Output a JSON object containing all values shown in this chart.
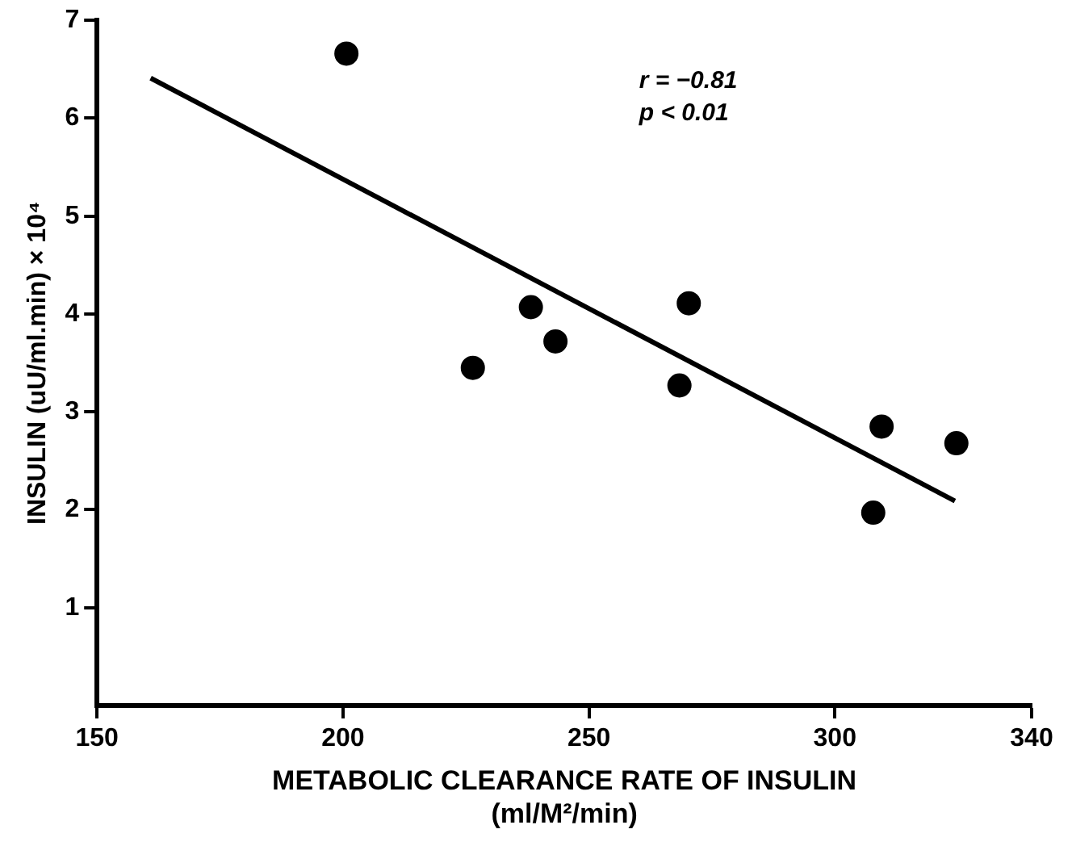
{
  "chart_data": {
    "type": "scatter",
    "xlabel": "METABOLIC CLEARANCE RATE OF INSULIN\n(ml/M²/min)",
    "ylabel": "INSULIN (uU/ml.min) × 10⁴",
    "series": [
      {
        "color": "#000000",
        "marker": "circle",
        "x": [
          200.7,
          226.4,
          238.2,
          243.2,
          268.4,
          270.3,
          307.8,
          309.5,
          324.7
        ],
        "values": [
          6.66,
          3.45,
          4.07,
          3.72,
          3.27,
          4.11,
          1.97,
          2.85,
          2.68
        ]
      },
      {
        "type": "line",
        "color": "#000000",
        "marker": "none",
        "x": [
          160.9,
          324.4
        ],
        "values": [
          6.41,
          2.09
        ]
      }
    ],
    "xlim": [
      150,
      340
    ],
    "xticks": [
      150,
      200,
      250,
      300,
      340
    ],
    "ylim": [
      0,
      7
    ],
    "yticks": [
      1,
      2,
      3,
      4,
      5,
      6,
      7
    ],
    "annotations": [
      "r = −0.81",
      "p < 0.01"
    ],
    "line_style": "solid",
    "grid": false,
    "legend": false
  }
}
